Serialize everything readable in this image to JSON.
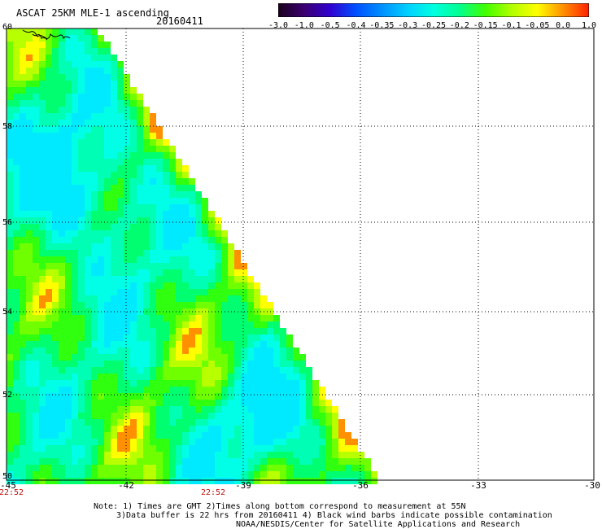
{
  "header": {
    "title": "ASCAT 25KM MLE-1 ascending",
    "date": "20160411"
  },
  "colorbar": {
    "labels": [
      "-3.0",
      "-1.0",
      "-0.5",
      "-0.4",
      "-0.35",
      "-0.3",
      "-0.25",
      "-0.2",
      "-0.15",
      "-0.1",
      "-0.05",
      "0.0",
      "1.0"
    ],
    "colors": [
      "#1a001a",
      "#3a0070",
      "#3000d0",
      "#0050ff",
      "#0090ff",
      "#00d0ff",
      "#00ffe0",
      "#00ff90",
      "#40ff00",
      "#b0ff00",
      "#ffff00",
      "#ff9000",
      "#ff2000"
    ]
  },
  "axes": {
    "lat_ticks": [
      "60",
      "58",
      "56",
      "54",
      "52",
      "50"
    ],
    "lon_ticks": [
      "-45",
      "-42",
      "-39",
      "-36",
      "-33",
      "-30"
    ],
    "time_labels": [
      "22:52",
      "22:52"
    ]
  },
  "notes": [
    "Note: 1) Times are GMT 2)Times along bottom correspond to measurement at 55N",
    "3)Data buffer is 22 hrs from 20160411 4) Black wind barbs indicate possible contamination",
    "NOAA/NESDIS/Center for Satellite Applications and Research"
  ]
}
